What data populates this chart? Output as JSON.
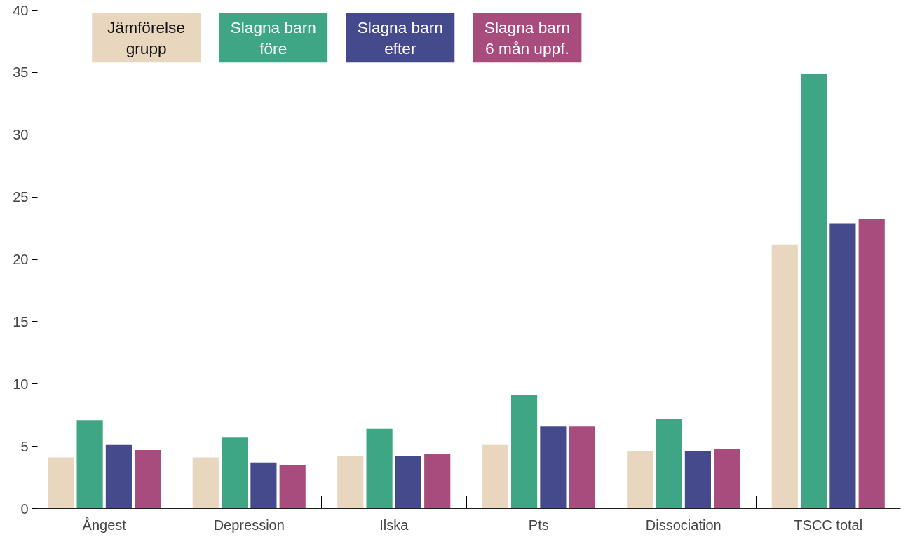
{
  "chart_data": {
    "type": "bar",
    "categories": [
      "Ångest",
      "Depression",
      "Ilska",
      "Pts",
      "Dissociation",
      "TSCC total"
    ],
    "series": [
      {
        "name": "Jämförelse\ngrupp",
        "color": "#e8d6bf",
        "values": [
          4.1,
          4.1,
          4.2,
          5.1,
          4.6,
          21.2
        ]
      },
      {
        "name": "Slagna barn\nföre",
        "color": "#3ea684",
        "values": [
          7.1,
          5.7,
          6.4,
          9.1,
          7.2,
          34.9
        ]
      },
      {
        "name": "Slagna barn\nefter",
        "color": "#454a8c",
        "values": [
          5.1,
          3.7,
          4.2,
          6.6,
          4.6,
          22.9
        ]
      },
      {
        "name": "Slagna barn\n6 mån uppf.",
        "color": "#a84b7d",
        "values": [
          4.7,
          3.5,
          4.4,
          6.6,
          4.8,
          23.2
        ]
      }
    ],
    "ylim": [
      0,
      40
    ],
    "yticks": [
      0,
      5,
      10,
      15,
      20,
      25,
      30,
      35,
      40
    ],
    "grid": false,
    "legend": "top left"
  }
}
